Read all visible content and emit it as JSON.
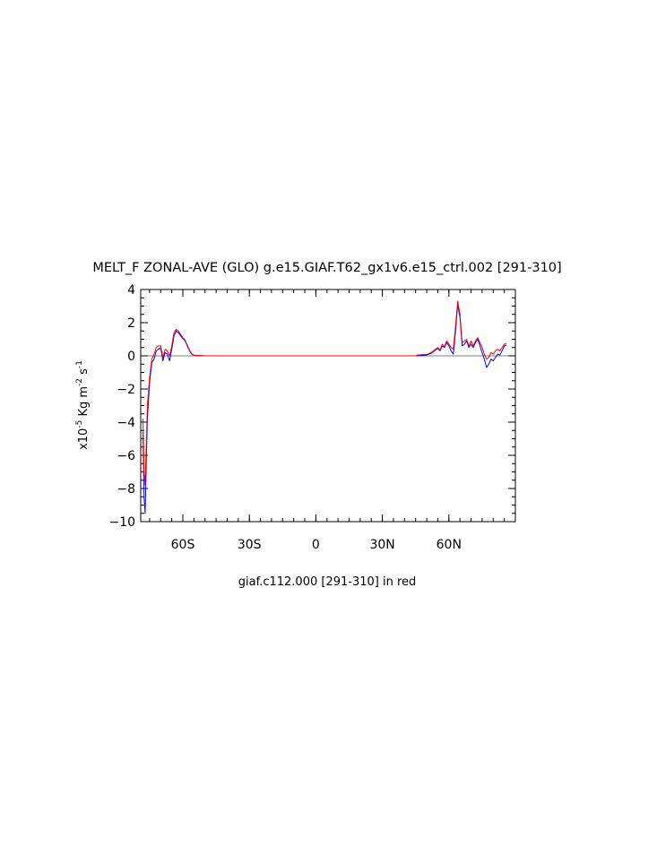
{
  "chart_data": {
    "type": "line",
    "title": "MELT_F ZONAL-AVE (GLO) g.e15.GIAF.T62_gx1v6.e15_ctrl.002 [291-310]",
    "ylabel_parts": {
      "base": "x10",
      "exp": "-5",
      "unit1": " Kg m",
      "exp2": "-2",
      "unit2": " s",
      "exp3": "-1"
    },
    "caption": "giaf.c112.000 [291-310] in red",
    "xlim": [
      -79,
      90
    ],
    "ylim": [
      -10,
      4
    ],
    "x_ticks": [
      {
        "value": -60,
        "label": "60S"
      },
      {
        "value": -30,
        "label": "30S"
      },
      {
        "value": 0,
        "label": "0"
      },
      {
        "value": 30,
        "label": "30N"
      },
      {
        "value": 60,
        "label": "60N"
      }
    ],
    "y_ticks": [
      {
        "value": 4,
        "label": "4"
      },
      {
        "value": 2,
        "label": "2"
      },
      {
        "value": 0,
        "label": "0"
      },
      {
        "value": -2,
        "label": "−2"
      },
      {
        "value": -4,
        "label": "−4"
      },
      {
        "value": -6,
        "label": "−6"
      },
      {
        "value": -8,
        "label": "−8"
      },
      {
        "value": -10,
        "label": "−10"
      }
    ],
    "zero_line": true,
    "series": [
      {
        "color": "#0000ff",
        "points": [
          [
            -78,
            -4.6
          ],
          [
            -77.5,
            -8.5
          ],
          [
            -77,
            -9.5
          ],
          [
            -76.5,
            -6.5
          ],
          [
            -76,
            -3.8
          ],
          [
            -75,
            -1.6
          ],
          [
            -74,
            -0.4
          ],
          [
            -73,
            -0.2
          ],
          [
            -72,
            0.3
          ],
          [
            -71,
            0.4
          ],
          [
            -70,
            0.5
          ],
          [
            -69,
            -0.3
          ],
          [
            -68,
            0.2
          ],
          [
            -67,
            0.1
          ],
          [
            -66,
            -0.3
          ],
          [
            -65,
            0.4
          ],
          [
            -64,
            1.2
          ],
          [
            -63,
            1.5
          ],
          [
            -62,
            1.4
          ],
          [
            -61,
            1.2
          ],
          [
            -60,
            1.05
          ],
          [
            -59,
            0.9
          ],
          [
            -58,
            0.6
          ],
          [
            -57,
            0.3
          ],
          [
            -56,
            0.1
          ],
          [
            -55,
            0.03
          ],
          [
            -50,
            0
          ],
          [
            0,
            0
          ],
          [
            45,
            0
          ],
          [
            47,
            0.02
          ],
          [
            50,
            0.05
          ],
          [
            52,
            0.15
          ],
          [
            54,
            0.35
          ],
          [
            55,
            0.45
          ],
          [
            56,
            0.3
          ],
          [
            57,
            0.6
          ],
          [
            58,
            0.5
          ],
          [
            59,
            0.8
          ],
          [
            60,
            0.6
          ],
          [
            61,
            0.3
          ],
          [
            62,
            0.1
          ],
          [
            63,
            1.5
          ],
          [
            64,
            3.1
          ],
          [
            65,
            2.3
          ],
          [
            66,
            0.6
          ],
          [
            67,
            0.7
          ],
          [
            68,
            0.9
          ],
          [
            69,
            0.5
          ],
          [
            70,
            0.7
          ],
          [
            71,
            0.5
          ],
          [
            72,
            0.8
          ],
          [
            73,
            1.0
          ],
          [
            74,
            0.6
          ],
          [
            75,
            0.2
          ],
          [
            76,
            -0.2
          ],
          [
            77,
            -0.7
          ],
          [
            78,
            -0.5
          ],
          [
            79,
            -0.2
          ],
          [
            80,
            -0.3
          ],
          [
            81,
            -0.1
          ],
          [
            82,
            0.1
          ],
          [
            83,
            0.05
          ],
          [
            84,
            0.3
          ],
          [
            85,
            0.6
          ],
          [
            86,
            0.65
          ]
        ]
      },
      {
        "color": "#ff0000",
        "points": [
          [
            -78,
            -3.8
          ],
          [
            -77.5,
            -7.0
          ],
          [
            -77,
            -7.8
          ],
          [
            -76.5,
            -5.5
          ],
          [
            -76,
            -3.0
          ],
          [
            -75,
            -1.3
          ],
          [
            -74,
            -0.2
          ],
          [
            -73,
            0.1
          ],
          [
            -72,
            0.5
          ],
          [
            -71,
            0.6
          ],
          [
            -70,
            0.6
          ],
          [
            -69,
            -0.1
          ],
          [
            -68,
            0.4
          ],
          [
            -67,
            0.3
          ],
          [
            -66,
            0.0
          ],
          [
            -65,
            0.6
          ],
          [
            -64,
            1.4
          ],
          [
            -63,
            1.6
          ],
          [
            -62,
            1.5
          ],
          [
            -61,
            1.3
          ],
          [
            -60,
            1.1
          ],
          [
            -59,
            0.95
          ],
          [
            -58,
            0.65
          ],
          [
            -57,
            0.35
          ],
          [
            -56,
            0.12
          ],
          [
            -55,
            0.04
          ],
          [
            -50,
            0
          ],
          [
            0,
            0
          ],
          [
            45,
            0
          ],
          [
            46,
            0.05
          ],
          [
            48,
            0.08
          ],
          [
            50,
            0.08
          ],
          [
            52,
            0.2
          ],
          [
            54,
            0.4
          ],
          [
            55,
            0.5
          ],
          [
            56,
            0.35
          ],
          [
            57,
            0.7
          ],
          [
            58,
            0.55
          ],
          [
            59,
            0.9
          ],
          [
            60,
            0.7
          ],
          [
            61,
            0.5
          ],
          [
            62,
            0.4
          ],
          [
            63,
            1.8
          ],
          [
            64,
            3.3
          ],
          [
            65,
            2.5
          ],
          [
            66,
            0.8
          ],
          [
            67,
            0.9
          ],
          [
            68,
            1.0
          ],
          [
            69,
            0.6
          ],
          [
            70,
            0.9
          ],
          [
            71,
            0.6
          ],
          [
            72,
            0.9
          ],
          [
            73,
            1.1
          ],
          [
            74,
            0.8
          ],
          [
            75,
            0.5
          ],
          [
            76,
            0.1
          ],
          [
            77,
            -0.2
          ],
          [
            78,
            -0.1
          ],
          [
            79,
            0.2
          ],
          [
            80,
            0.1
          ],
          [
            81,
            0.3
          ],
          [
            82,
            0.4
          ],
          [
            83,
            0.3
          ],
          [
            84,
            0.5
          ],
          [
            85,
            0.7
          ],
          [
            86,
            0.75
          ]
        ]
      }
    ]
  }
}
